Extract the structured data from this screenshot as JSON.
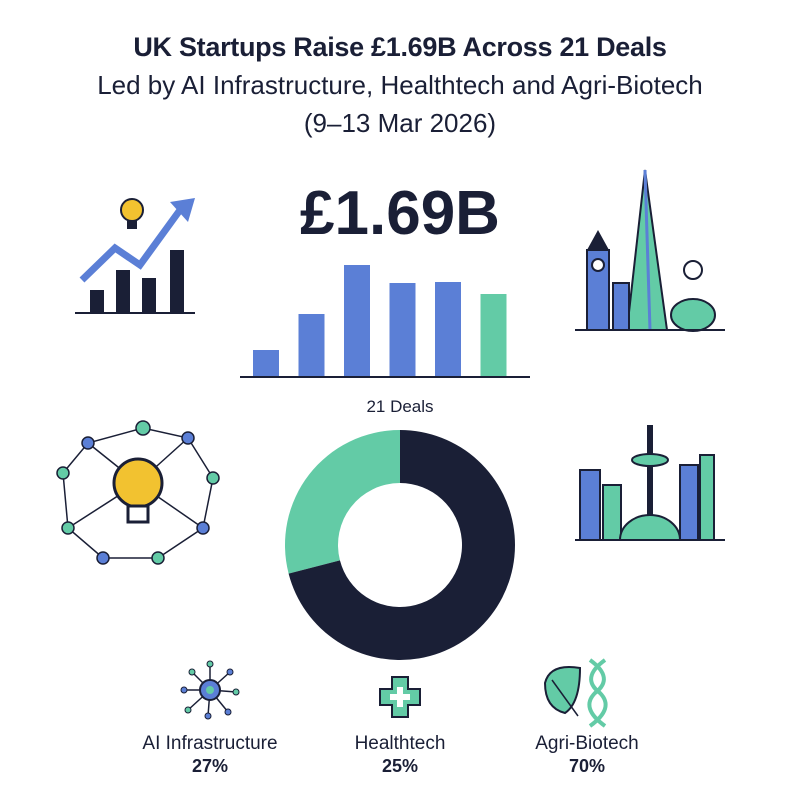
{
  "header": {
    "title": "UK Startups Raise £1.69B Across 21 Deals",
    "subtitle": "Led by AI Infrastructure, Healthtech and Agri-Biotech",
    "dates": "(9–13 Mar 2026)"
  },
  "headline_amount": "£1.69B",
  "deals_label": "21 Deals",
  "colors": {
    "blue": "#5b7fd6",
    "green": "#63cba6",
    "navy": "#1a1f36"
  },
  "icons": [
    "lightbulb-growth-chart-icon",
    "london-skyline-icon",
    "ai-network-lightbulb-icon",
    "city-skyline-icon",
    "ai-network-node-icon",
    "medical-cross-icon",
    "leaf-dna-icon"
  ],
  "chart_data": [
    {
      "type": "bar",
      "categories": [
        "1",
        "2",
        "3",
        "4",
        "5",
        "6"
      ],
      "values": [
        27,
        63,
        112,
        94,
        95,
        83
      ],
      "highlight_index": 5,
      "axes": "none",
      "grid": false,
      "title": "",
      "xlabel": "",
      "ylabel": ""
    },
    {
      "type": "pie",
      "style": "donut",
      "slices": [
        {
          "label": "green",
          "value": 29,
          "color": "#63cba6"
        },
        {
          "label": "navy",
          "value": 71,
          "color": "#1a1f36"
        }
      ]
    }
  ],
  "sectors": [
    {
      "name": "AI Infrastructure",
      "pct": "27%"
    },
    {
      "name": "Healthtech",
      "pct": "25%"
    },
    {
      "name": "Agri-Biotech",
      "pct": "70%"
    }
  ]
}
